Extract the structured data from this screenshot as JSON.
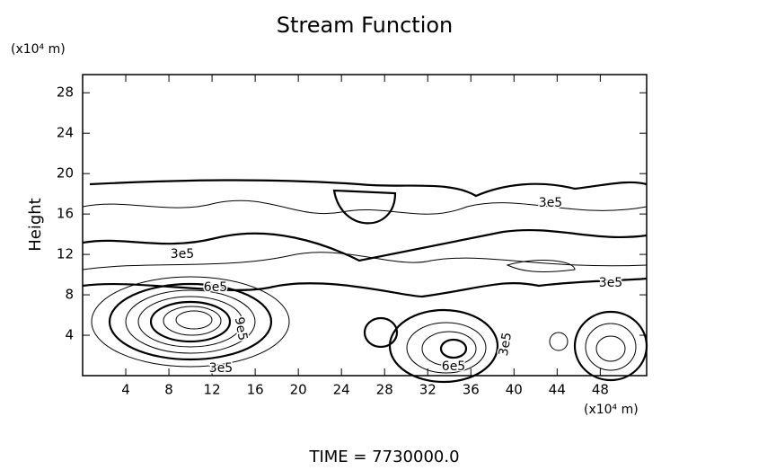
{
  "chart_data": {
    "type": "contour",
    "title": "Stream Function",
    "y_unit": "(x10⁴ m)",
    "x_unit": "(x10⁴ m)",
    "y_label": "Height",
    "footer": "TIME  =  7730000.0",
    "xlim": [
      0,
      52.3
    ],
    "ylim": [
      0,
      29.8
    ],
    "xticks": [
      4,
      8,
      12,
      16,
      20,
      24,
      28,
      32,
      36,
      40,
      44,
      48
    ],
    "yticks": [
      4,
      8,
      12,
      16,
      20,
      24,
      28
    ],
    "contour_labels": [
      "3e5",
      "3e5",
      "6e5",
      "9e5",
      "3e5",
      "6e5",
      "3e5",
      "3e5"
    ]
  }
}
